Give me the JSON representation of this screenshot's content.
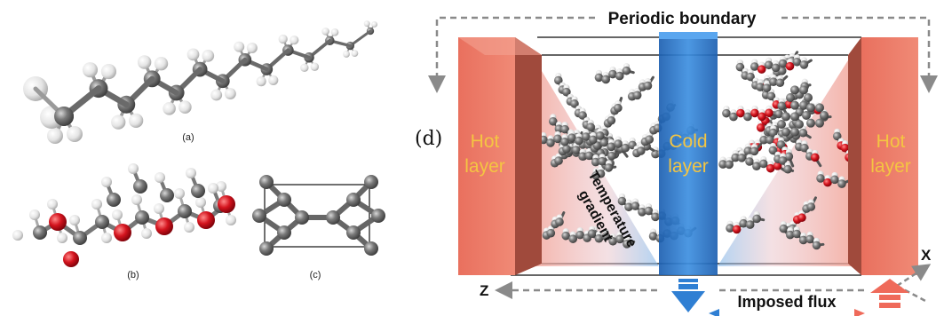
{
  "panels": {
    "a": {
      "label": "(a)"
    },
    "b": {
      "label": "(b)"
    },
    "c": {
      "label": "(c)"
    },
    "d": {
      "label": "(d)",
      "periodic_boundary": "Periodic boundary",
      "hot_layer_left": [
        "Hot",
        "layer"
      ],
      "cold_layer": [
        "Cold",
        "layer"
      ],
      "hot_layer_right": [
        "Hot",
        "layer"
      ],
      "gradient_text": [
        "Temperature",
        "gradient"
      ],
      "axis_z": "Z",
      "axis_x": "X",
      "imposed_flux": "Imposed flux"
    }
  },
  "colors": {
    "hot": "#e8705f",
    "hot_dark": "#b65a49",
    "cold": "#2f7fd3",
    "cold_dark": "#1b5fa8",
    "carbon": "#6e6e6e",
    "hydrogen": "#e2e2e2",
    "oxygen": "#d4141e",
    "layer_text": "#f4c542",
    "boundary_arrow": "#8a8a8a"
  }
}
